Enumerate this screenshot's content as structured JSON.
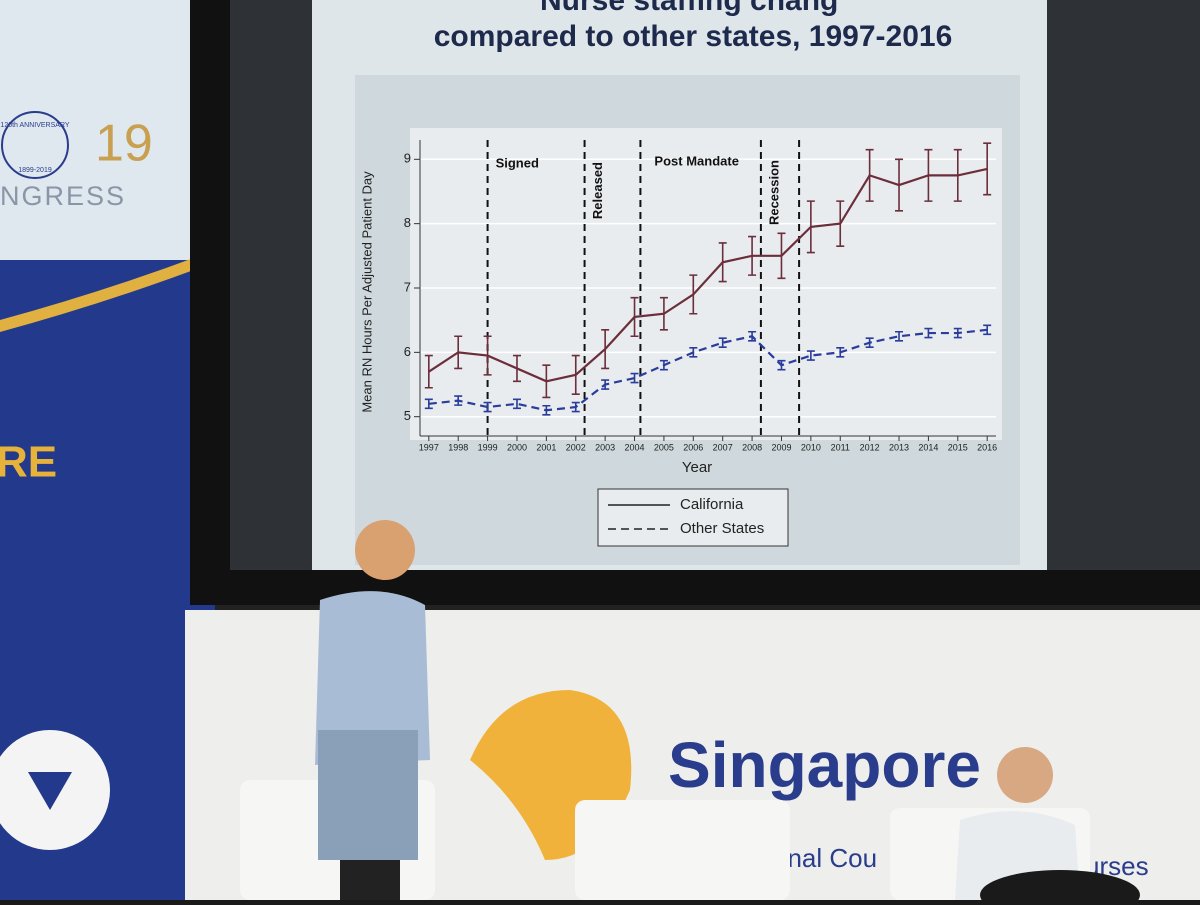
{
  "chart_data": {
    "type": "line",
    "title_top": "Nurse staffing chang",
    "title": "compared to other states, 1997-2016",
    "x_label": "Year",
    "y_label": "Mean RN Hours Per Adjusted Patient Day",
    "x": [
      1997,
      1998,
      1999,
      2000,
      2001,
      2002,
      2003,
      2004,
      2005,
      2006,
      2007,
      2008,
      2009,
      2010,
      2011,
      2012,
      2013,
      2014,
      2015,
      2016
    ],
    "xlim": [
      1996.7,
      2016.3
    ],
    "xticks": [
      1997,
      1998,
      1999,
      2000,
      2001,
      2002,
      2003,
      2004,
      2005,
      2006,
      2007,
      2008,
      2009,
      2010,
      2011,
      2012,
      2013,
      2014,
      2015,
      2016
    ],
    "ylim": [
      4.7,
      9.3
    ],
    "yticks": [
      5,
      6,
      7,
      8,
      9
    ],
    "grid": true,
    "series": [
      {
        "name": "California",
        "color": "#6b2e3a",
        "style": "solid",
        "values": [
          5.7,
          6.0,
          5.95,
          5.75,
          5.55,
          5.65,
          6.05,
          6.55,
          6.6,
          6.9,
          7.4,
          7.5,
          7.5,
          7.95,
          8.0,
          8.75,
          8.6,
          8.75,
          8.75,
          8.85
        ],
        "errors": [
          0.25,
          0.25,
          0.3,
          0.2,
          0.25,
          0.3,
          0.3,
          0.3,
          0.25,
          0.3,
          0.3,
          0.3,
          0.35,
          0.4,
          0.35,
          0.4,
          0.4,
          0.4,
          0.4,
          0.4
        ]
      },
      {
        "name": "Other States",
        "color": "#2a3c9c",
        "style": "dashed",
        "values": [
          5.2,
          5.25,
          5.15,
          5.2,
          5.1,
          5.15,
          5.5,
          5.6,
          5.8,
          6.0,
          6.15,
          6.25,
          5.8,
          5.95,
          6.0,
          6.15,
          6.25,
          6.3,
          6.3,
          6.35
        ],
        "errors": [
          0.07,
          0.07,
          0.07,
          0.07,
          0.07,
          0.07,
          0.07,
          0.07,
          0.07,
          0.07,
          0.07,
          0.07,
          0.07,
          0.07,
          0.07,
          0.07,
          0.07,
          0.07,
          0.07,
          0.07
        ]
      }
    ],
    "vlines": [
      1999,
      2002.3,
      2004.2,
      2008.3,
      2009.6
    ],
    "annotations": [
      "Signed",
      "Released",
      "Post Mandate",
      "Recession"
    ],
    "legend": "bottom"
  },
  "scene": {
    "banner_anniversary": "120th ANNIVERSARY",
    "banner_years": "1899-2019",
    "banner_number": "19",
    "banner_word": "NGRESS",
    "banner_fragment": "RE",
    "stage_logo": "Singapore",
    "stage_sub_left": "tional Cou",
    "stage_sub_right": "urses"
  }
}
